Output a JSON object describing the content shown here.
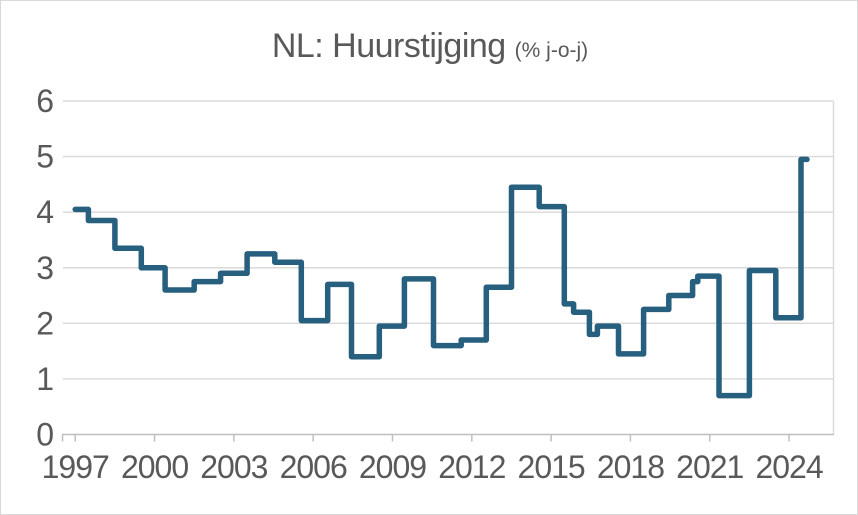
{
  "chart_data": {
    "type": "line",
    "subtype": "step",
    "title": "NL: Huurstijging",
    "title_unit": "(% j-o-j)",
    "xlabel": "",
    "ylabel": "",
    "ylim": [
      0,
      6
    ],
    "xlim": [
      1996.5,
      2025.7
    ],
    "y_ticks": [
      0,
      1,
      2,
      3,
      4,
      5,
      6
    ],
    "x_ticks": [
      1997,
      2000,
      2003,
      2006,
      2009,
      2012,
      2015,
      2018,
      2021,
      2024
    ],
    "grid": "horizontal",
    "legend_position": "none",
    "series": [
      {
        "name": "Huurstijging NL (% j-o-j)",
        "color": "#275F7F",
        "x_end": 2024.68,
        "steps": [
          {
            "x": 1997.0,
            "v": 4.05
          },
          {
            "x": 1997.5,
            "v": 3.85
          },
          {
            "x": 1998.5,
            "v": 3.35
          },
          {
            "x": 1999.5,
            "v": 3.0
          },
          {
            "x": 2000.4,
            "v": 2.6
          },
          {
            "x": 2001.5,
            "v": 2.75
          },
          {
            "x": 2002.5,
            "v": 2.9
          },
          {
            "x": 2003.5,
            "v": 3.25
          },
          {
            "x": 2004.55,
            "v": 3.1
          },
          {
            "x": 2005.55,
            "v": 2.05
          },
          {
            "x": 2006.55,
            "v": 2.7
          },
          {
            "x": 2007.45,
            "v": 1.4
          },
          {
            "x": 2008.5,
            "v": 1.95
          },
          {
            "x": 2009.45,
            "v": 2.8
          },
          {
            "x": 2010.55,
            "v": 1.6
          },
          {
            "x": 2011.6,
            "v": 1.7
          },
          {
            "x": 2012.55,
            "v": 2.65
          },
          {
            "x": 2013.5,
            "v": 4.45
          },
          {
            "x": 2014.55,
            "v": 4.1
          },
          {
            "x": 2015.5,
            "v": 2.35
          },
          {
            "x": 2015.85,
            "v": 2.2
          },
          {
            "x": 2016.45,
            "v": 1.8
          },
          {
            "x": 2016.75,
            "v": 1.95
          },
          {
            "x": 2017.55,
            "v": 1.45
          },
          {
            "x": 2018.5,
            "v": 2.25
          },
          {
            "x": 2019.45,
            "v": 2.5
          },
          {
            "x": 2020.35,
            "v": 2.75
          },
          {
            "x": 2020.55,
            "v": 2.85
          },
          {
            "x": 2021.35,
            "v": 0.7
          },
          {
            "x": 2022.5,
            "v": 2.95
          },
          {
            "x": 2023.5,
            "v": 2.1
          },
          {
            "x": 2024.45,
            "v": 4.95
          }
        ]
      }
    ]
  },
  "colors": {
    "line": "#275F7F",
    "grid": "#D9D9D9",
    "axis": "#BFBFBF",
    "text": "#595959",
    "background": "#FFFFFF",
    "border": "#D9D9D9"
  }
}
